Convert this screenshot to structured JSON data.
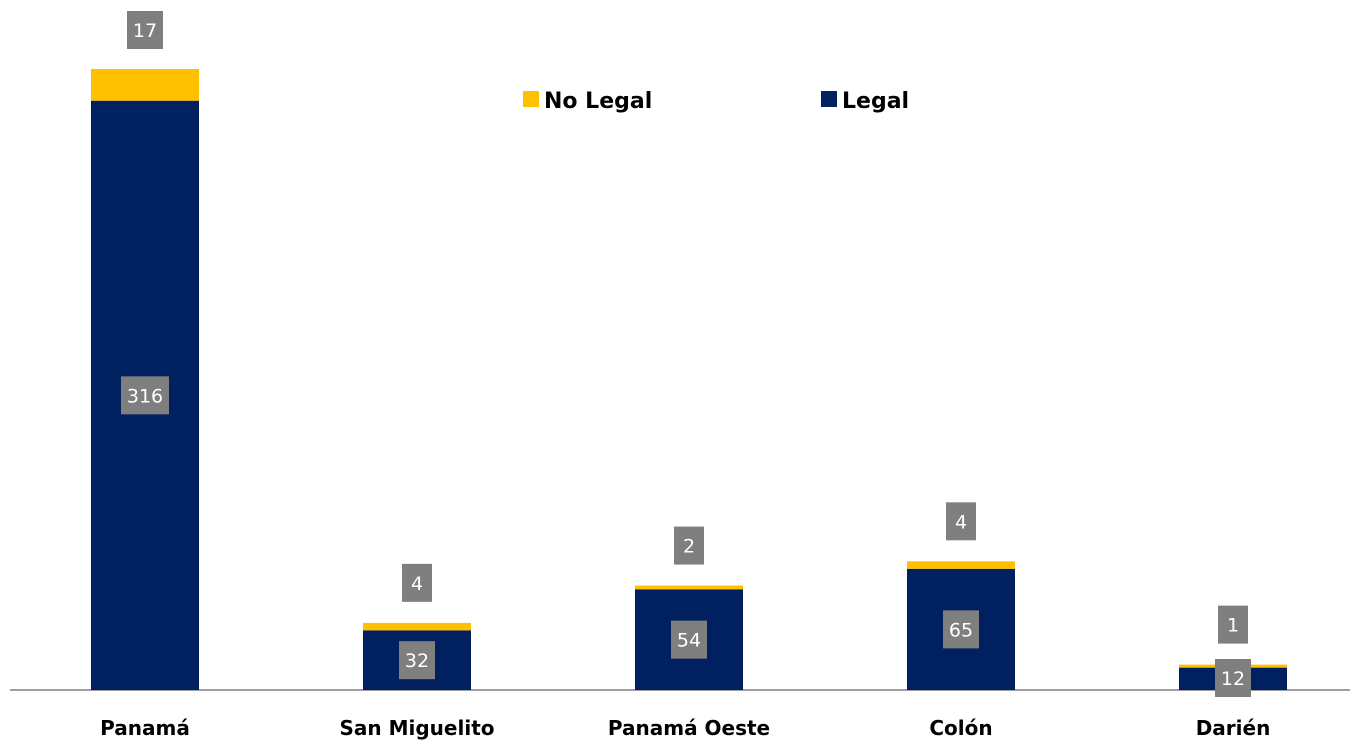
{
  "chart_data": {
    "type": "bar",
    "stacked": true,
    "categories": [
      "Panamá",
      "San Miguelito",
      "Panamá Oeste",
      "Colón",
      "Darién"
    ],
    "series": [
      {
        "name": "Legal",
        "color": "#002060",
        "values": [
          316,
          32,
          54,
          65,
          12
        ]
      },
      {
        "name": "No Legal",
        "color": "#FFC000",
        "values": [
          17,
          4,
          2,
          4,
          1
        ]
      }
    ],
    "legend": {
      "position": "top-center",
      "order": [
        "No Legal",
        "Legal"
      ]
    },
    "data_labels": true,
    "label_box_color": "#7F7F7F",
    "axis_line_color": "#7F7F7F",
    "grid": false,
    "y_axis_visible": false,
    "ylim": [
      0,
      340
    ]
  }
}
